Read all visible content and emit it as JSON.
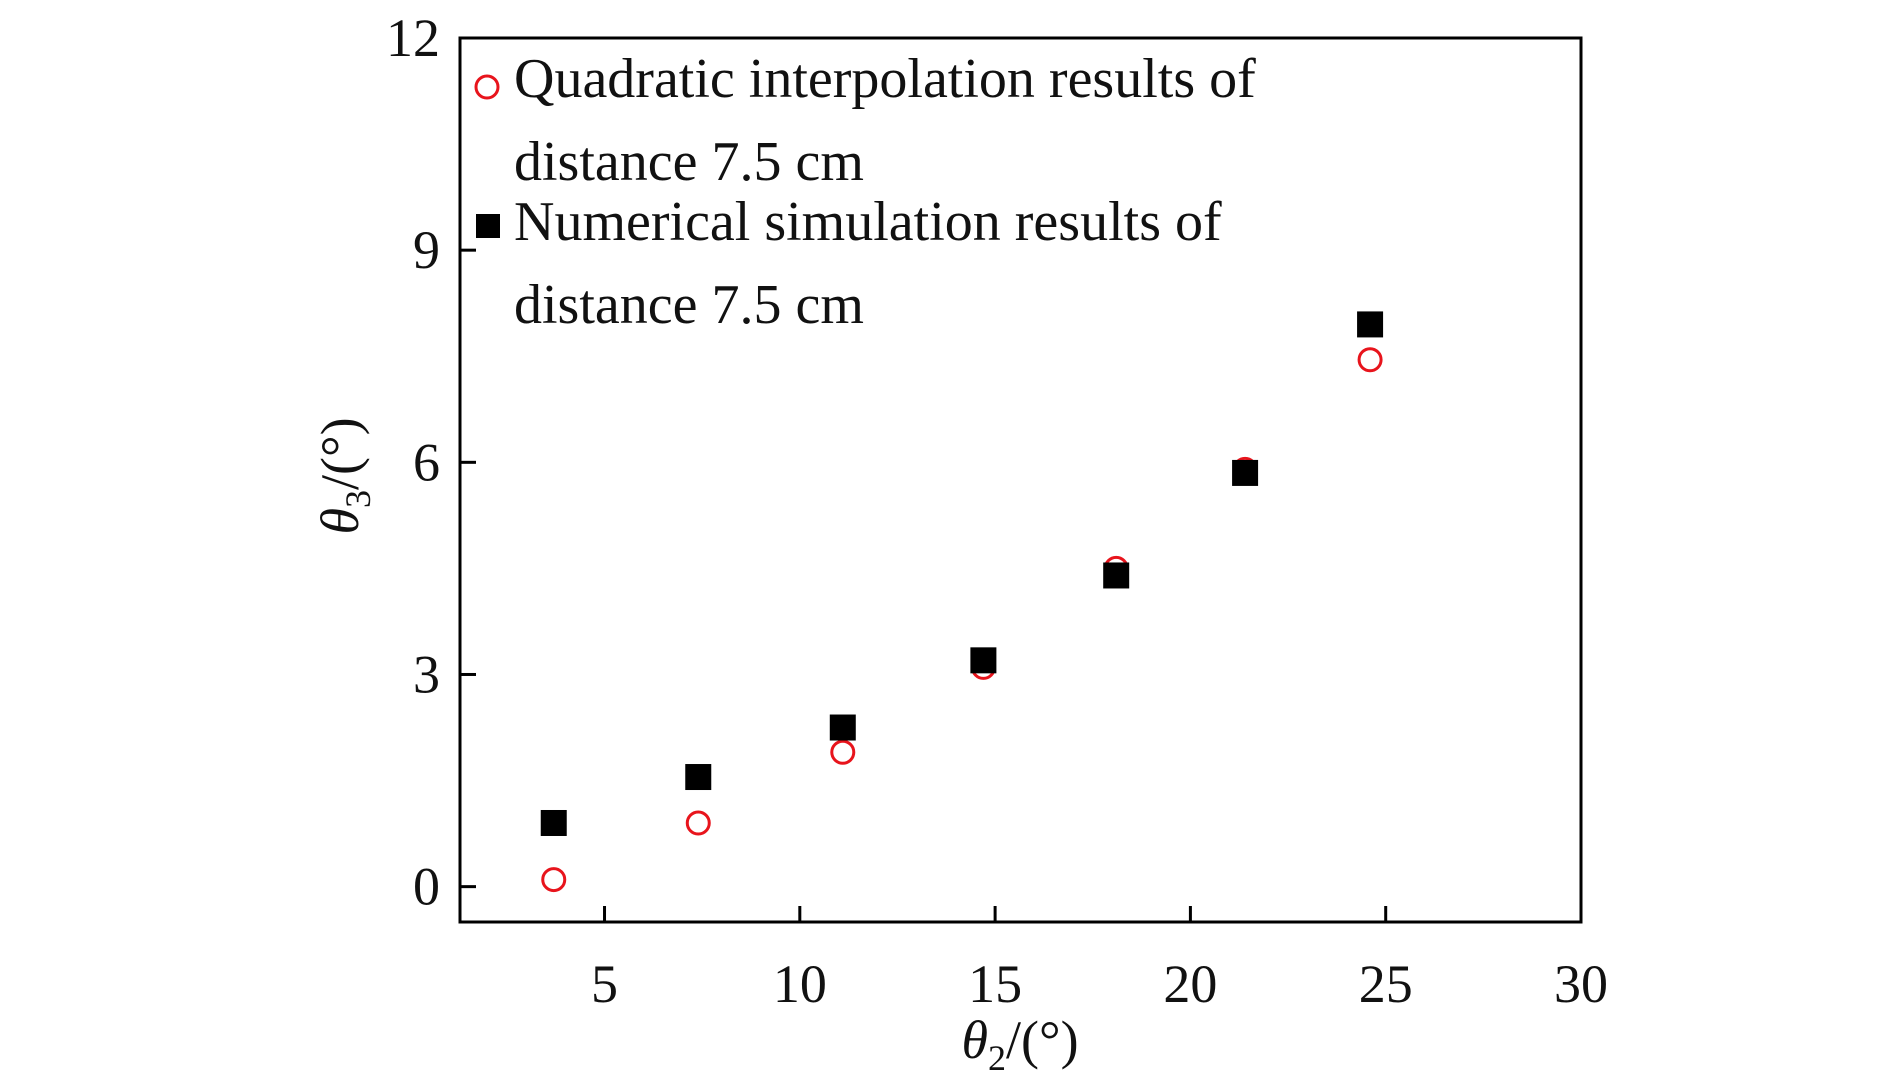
{
  "chart_data": {
    "type": "scatter",
    "xlabel": {
      "symbol": "θ",
      "sub": "2",
      "unit": "/(°)"
    },
    "ylabel": {
      "symbol": "θ",
      "sub": "3",
      "unit": "/(°)"
    },
    "xlim": [
      1.3,
      30
    ],
    "ylim": [
      -0.5,
      12
    ],
    "xticks": [
      5,
      10,
      15,
      20,
      25,
      30
    ],
    "yticks": [
      0,
      3,
      6,
      9,
      12
    ],
    "grid": false,
    "legend_position": "top-left",
    "series": [
      {
        "name": "Quadratic interpolation results of distance 7.5 cm",
        "legend_lines": [
          "Quadratic interpolation results of",
          "distance 7.5 cm"
        ],
        "marker": "open-circle",
        "color": "#e8141c",
        "x": [
          3.7,
          7.4,
          11.1,
          14.7,
          18.1,
          21.4,
          24.6
        ],
        "y": [
          0.1,
          0.9,
          1.9,
          3.1,
          4.5,
          5.9,
          7.45
        ]
      },
      {
        "name": "Numerical simulation results of distance 7.5 cm",
        "legend_lines": [
          "Numerical simulation results of",
          "distance 7.5 cm"
        ],
        "marker": "filled-square",
        "color": "#000000",
        "x": [
          3.7,
          7.4,
          11.1,
          14.7,
          18.1,
          21.4,
          24.6
        ],
        "y": [
          0.9,
          1.55,
          2.25,
          3.2,
          4.4,
          5.85,
          7.95
        ]
      }
    ]
  }
}
